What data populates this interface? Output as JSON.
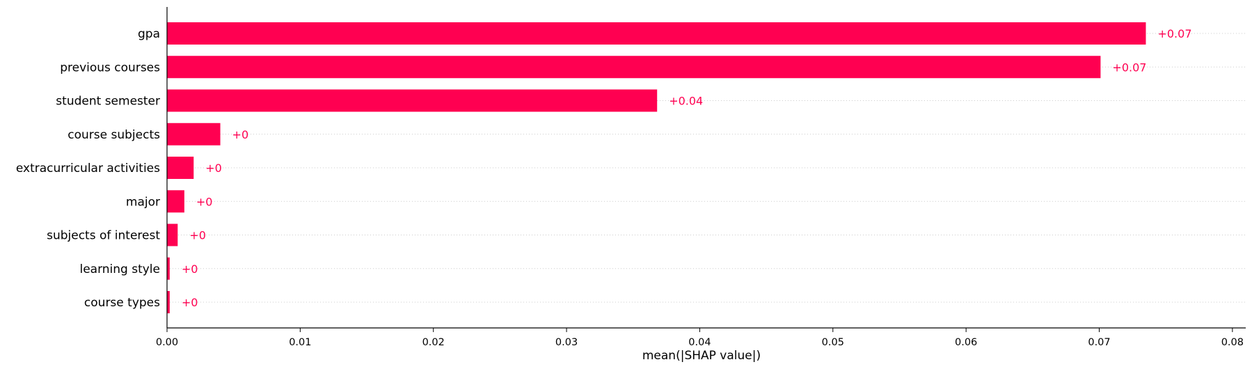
{
  "chart_data": {
    "type": "bar",
    "orientation": "horizontal",
    "categories": [
      "gpa",
      "previous courses",
      "student semester",
      "course subjects",
      "extracurricular activities",
      "major",
      "subjects of interest",
      "learning style",
      "course types"
    ],
    "values": [
      0.0735,
      0.0701,
      0.0368,
      0.004,
      0.002,
      0.0013,
      0.0008,
      0.0002,
      0.0002
    ],
    "value_labels": [
      "+0.07",
      "+0.07",
      "+0.04",
      "+0",
      "+0",
      "+0",
      "+0",
      "+0",
      "+0"
    ],
    "xlabel": "mean(|SHAP value|)",
    "ylabel": "",
    "xlim": [
      0,
      0.081
    ],
    "xticks": [
      0.0,
      0.01,
      0.02,
      0.03,
      0.04,
      0.05,
      0.06,
      0.07,
      0.08
    ],
    "xtick_labels": [
      "0.00",
      "0.01",
      "0.02",
      "0.03",
      "0.04",
      "0.05",
      "0.06",
      "0.07",
      "0.08"
    ],
    "gridlines": "dotted horizontal per row",
    "colors": {
      "bar": "#ff0051",
      "label": "#ff0051",
      "grid": "#cccccc",
      "axis": "#000000"
    }
  }
}
